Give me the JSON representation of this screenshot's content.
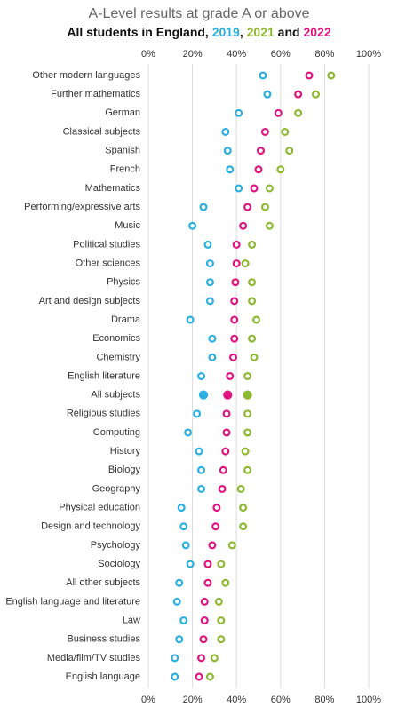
{
  "chart_data": {
    "type": "dot",
    "title": "A-Level results at grade A or above",
    "subtitle_parts": [
      "All students in England, ",
      ", ",
      " and "
    ],
    "categories": [
      "Other modern languages",
      "Further mathematics",
      "German",
      "Classical subjects",
      "Spanish",
      "French",
      "Mathematics",
      "Performing/expressive arts",
      "Music",
      "Political studies",
      "Other sciences",
      "Physics",
      "Art and design subjects",
      "Drama",
      "Economics",
      "Chemistry",
      "English literature",
      "All subjects",
      "Religious studies",
      "Computing",
      "History",
      "Biology",
      "Geography",
      "Physical education",
      "Design and technology",
      "Psychology",
      "Sociology",
      "All other subjects",
      "English language and literature",
      "Law",
      "Business studies",
      "Media/film/TV studies",
      "English language"
    ],
    "series": [
      {
        "name": "2019",
        "color": "#2aafe0",
        "values": [
          52,
          54,
          41,
          35,
          36,
          37,
          41,
          25,
          20,
          27,
          28,
          28,
          28,
          19,
          29,
          29,
          24,
          25,
          22,
          18,
          23,
          24,
          24,
          15,
          16,
          17,
          19,
          14,
          13,
          16,
          14,
          12,
          12
        ]
      },
      {
        "name": "2021",
        "color": "#8cb832",
        "values": [
          83,
          76,
          68,
          62,
          64,
          60,
          55,
          53,
          55,
          47,
          44,
          47,
          47,
          49,
          47,
          48,
          45,
          45,
          45,
          45,
          44,
          45,
          42,
          43,
          43,
          38,
          33,
          35,
          32,
          33,
          33,
          30,
          28
        ]
      },
      {
        "name": "2022",
        "color": "#e0147f",
        "values": [
          73,
          68,
          59,
          53,
          51,
          50,
          48,
          45,
          43,
          40,
          40,
          39.5,
          39,
          39,
          39,
          38.5,
          37,
          36,
          35.5,
          35.5,
          35,
          34,
          33.5,
          31,
          30.5,
          29,
          27,
          27,
          25.5,
          25.5,
          25,
          24,
          23
        ]
      }
    ],
    "highlight": "All subjects",
    "xlim": [
      0,
      100
    ],
    "xticks": [
      {
        "value": 0,
        "label": "0%"
      },
      {
        "value": 20,
        "label": "20%"
      },
      {
        "value": 40,
        "label": "40%"
      },
      {
        "value": 60,
        "label": "60%"
      },
      {
        "value": 80,
        "label": "80%"
      },
      {
        "value": 100,
        "label": "100%"
      }
    ],
    "grid": true
  }
}
